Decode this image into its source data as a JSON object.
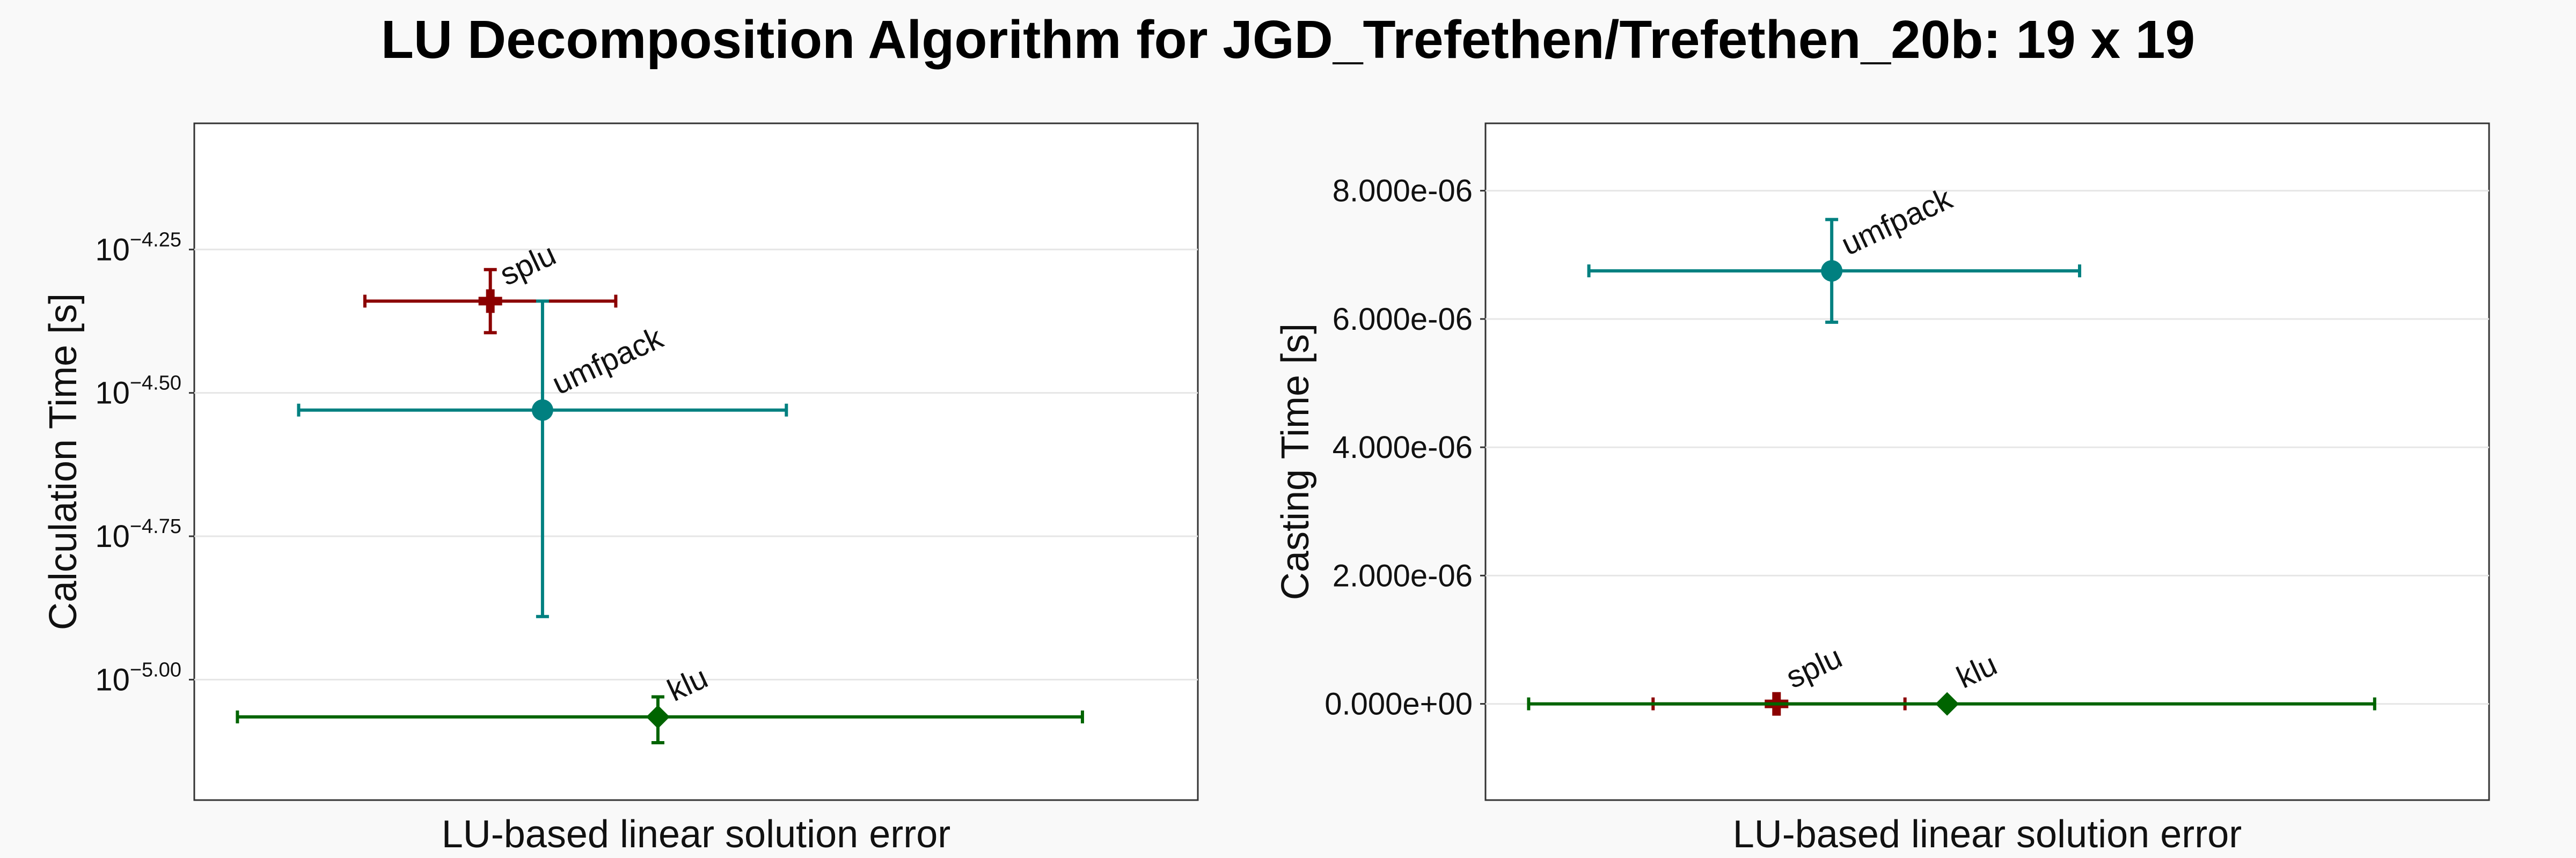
{
  "title": "LU Decomposition Algorithm for JGD_Trefethen/Trefethen_20b: 19 x 19",
  "colors": {
    "splu": "#8b0000",
    "umfpack": "#008080",
    "klu": "#006400"
  },
  "chart_data": [
    {
      "type": "scatter",
      "y_scale": "log10",
      "ylabel": "Calculation Time [s]",
      "xlabel": "LU-based linear solution error",
      "ylim_log10": [
        -5.21,
        -4.03
      ],
      "y_ticks": [
        {
          "value": -4.25,
          "base": "10",
          "exp": "−4.25"
        },
        {
          "value": -4.5,
          "base": "10",
          "exp": "−4.50"
        },
        {
          "value": -4.75,
          "base": "10",
          "exp": "−4.75"
        },
        {
          "value": -5.0,
          "base": "10",
          "exp": "−5.00"
        }
      ],
      "series": [
        {
          "name": "splu",
          "marker": "cross",
          "x": 0.295,
          "x_err": [
            0.17,
            0.42
          ],
          "y_log10": -4.34,
          "y_err_log10": [
            -4.395,
            -4.285
          ]
        },
        {
          "name": "umfpack",
          "marker": "circle",
          "x": 0.347,
          "x_err": [
            0.104,
            0.59
          ],
          "y_log10": -4.53,
          "y_err_log10": [
            -4.89,
            -4.34
          ]
        },
        {
          "name": "klu",
          "marker": "diamond",
          "x": 0.462,
          "x_err": [
            0.043,
            0.885
          ],
          "y_log10": -5.065,
          "y_err_log10": [
            -5.11,
            -5.03
          ]
        }
      ]
    },
    {
      "type": "scatter",
      "y_scale": "linear",
      "ylabel": "Casting Time [s]",
      "xlabel": "LU-based linear solution error",
      "ylim": [
        -1.5e-06,
        9.05e-06
      ],
      "y_ticks": [
        {
          "value": 0,
          "label": "0.000e+00"
        },
        {
          "value": 2e-06,
          "label": "2.000e-06"
        },
        {
          "value": 4e-06,
          "label": "4.000e-06"
        },
        {
          "value": 6e-06,
          "label": "6.000e-06"
        },
        {
          "value": 8e-06,
          "label": "8.000e-06"
        }
      ],
      "series": [
        {
          "name": "umfpack",
          "marker": "circle",
          "x": 0.345,
          "x_err": [
            0.103,
            0.592
          ],
          "y": 6.75e-06,
          "y_err": [
            5.95e-06,
            7.55e-06
          ]
        },
        {
          "name": "splu",
          "marker": "cross",
          "x": 0.29,
          "x_err": [
            0.167,
            0.418
          ],
          "y": 0,
          "y_err": null
        },
        {
          "name": "klu",
          "marker": "diamond",
          "x": 0.46,
          "x_err": [
            0.043,
            0.886
          ],
          "y": 0,
          "y_err": null
        }
      ]
    }
  ]
}
